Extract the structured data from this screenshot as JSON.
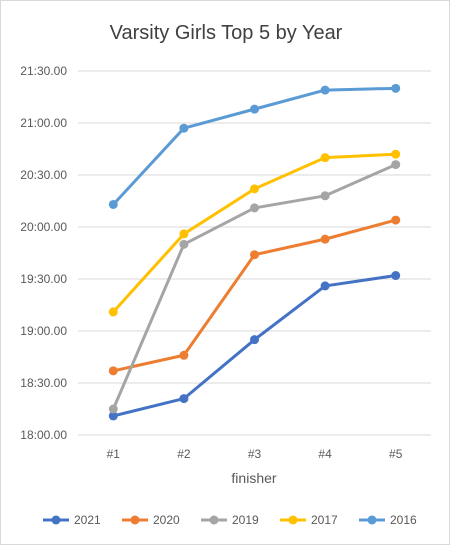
{
  "chart_data": {
    "type": "line",
    "title": "Varsity Girls Top 5 by Year",
    "xlabel": "finisher",
    "ylabel": "",
    "categories": [
      "#1",
      "#2",
      "#3",
      "#4",
      "#5"
    ],
    "y_unit": "minutes",
    "ylim": [
      1080,
      1290
    ],
    "y_ticks": [
      {
        "label": "18:00.00",
        "value": 1080
      },
      {
        "label": "18:30.00",
        "value": 1110
      },
      {
        "label": "19:00.00",
        "value": 1140
      },
      {
        "label": "19:30.00",
        "value": 1170
      },
      {
        "label": "20:00.00",
        "value": 1200
      },
      {
        "label": "20:30.00",
        "value": 1230
      },
      {
        "label": "21:00.00",
        "value": 1260
      },
      {
        "label": "21:30.00",
        "value": 1290
      }
    ],
    "grid": true,
    "legend_position": "bottom",
    "series": [
      {
        "name": "2021",
        "color": "#4472C4",
        "values": [
          1091,
          1101,
          1135,
          1166,
          1172
        ]
      },
      {
        "name": "2020",
        "color": "#ED7D31",
        "values": [
          1117,
          1126,
          1184,
          1193,
          1204
        ]
      },
      {
        "name": "2019",
        "color": "#A5A5A5",
        "values": [
          1095,
          1190,
          1211,
          1218,
          1236
        ]
      },
      {
        "name": "2017",
        "color": "#FFC000",
        "values": [
          1151,
          1196,
          1222,
          1240,
          1242
        ]
      },
      {
        "name": "2016",
        "color": "#5B9BD5",
        "values": [
          1213,
          1257,
          1268,
          1279,
          1280
        ]
      }
    ]
  }
}
